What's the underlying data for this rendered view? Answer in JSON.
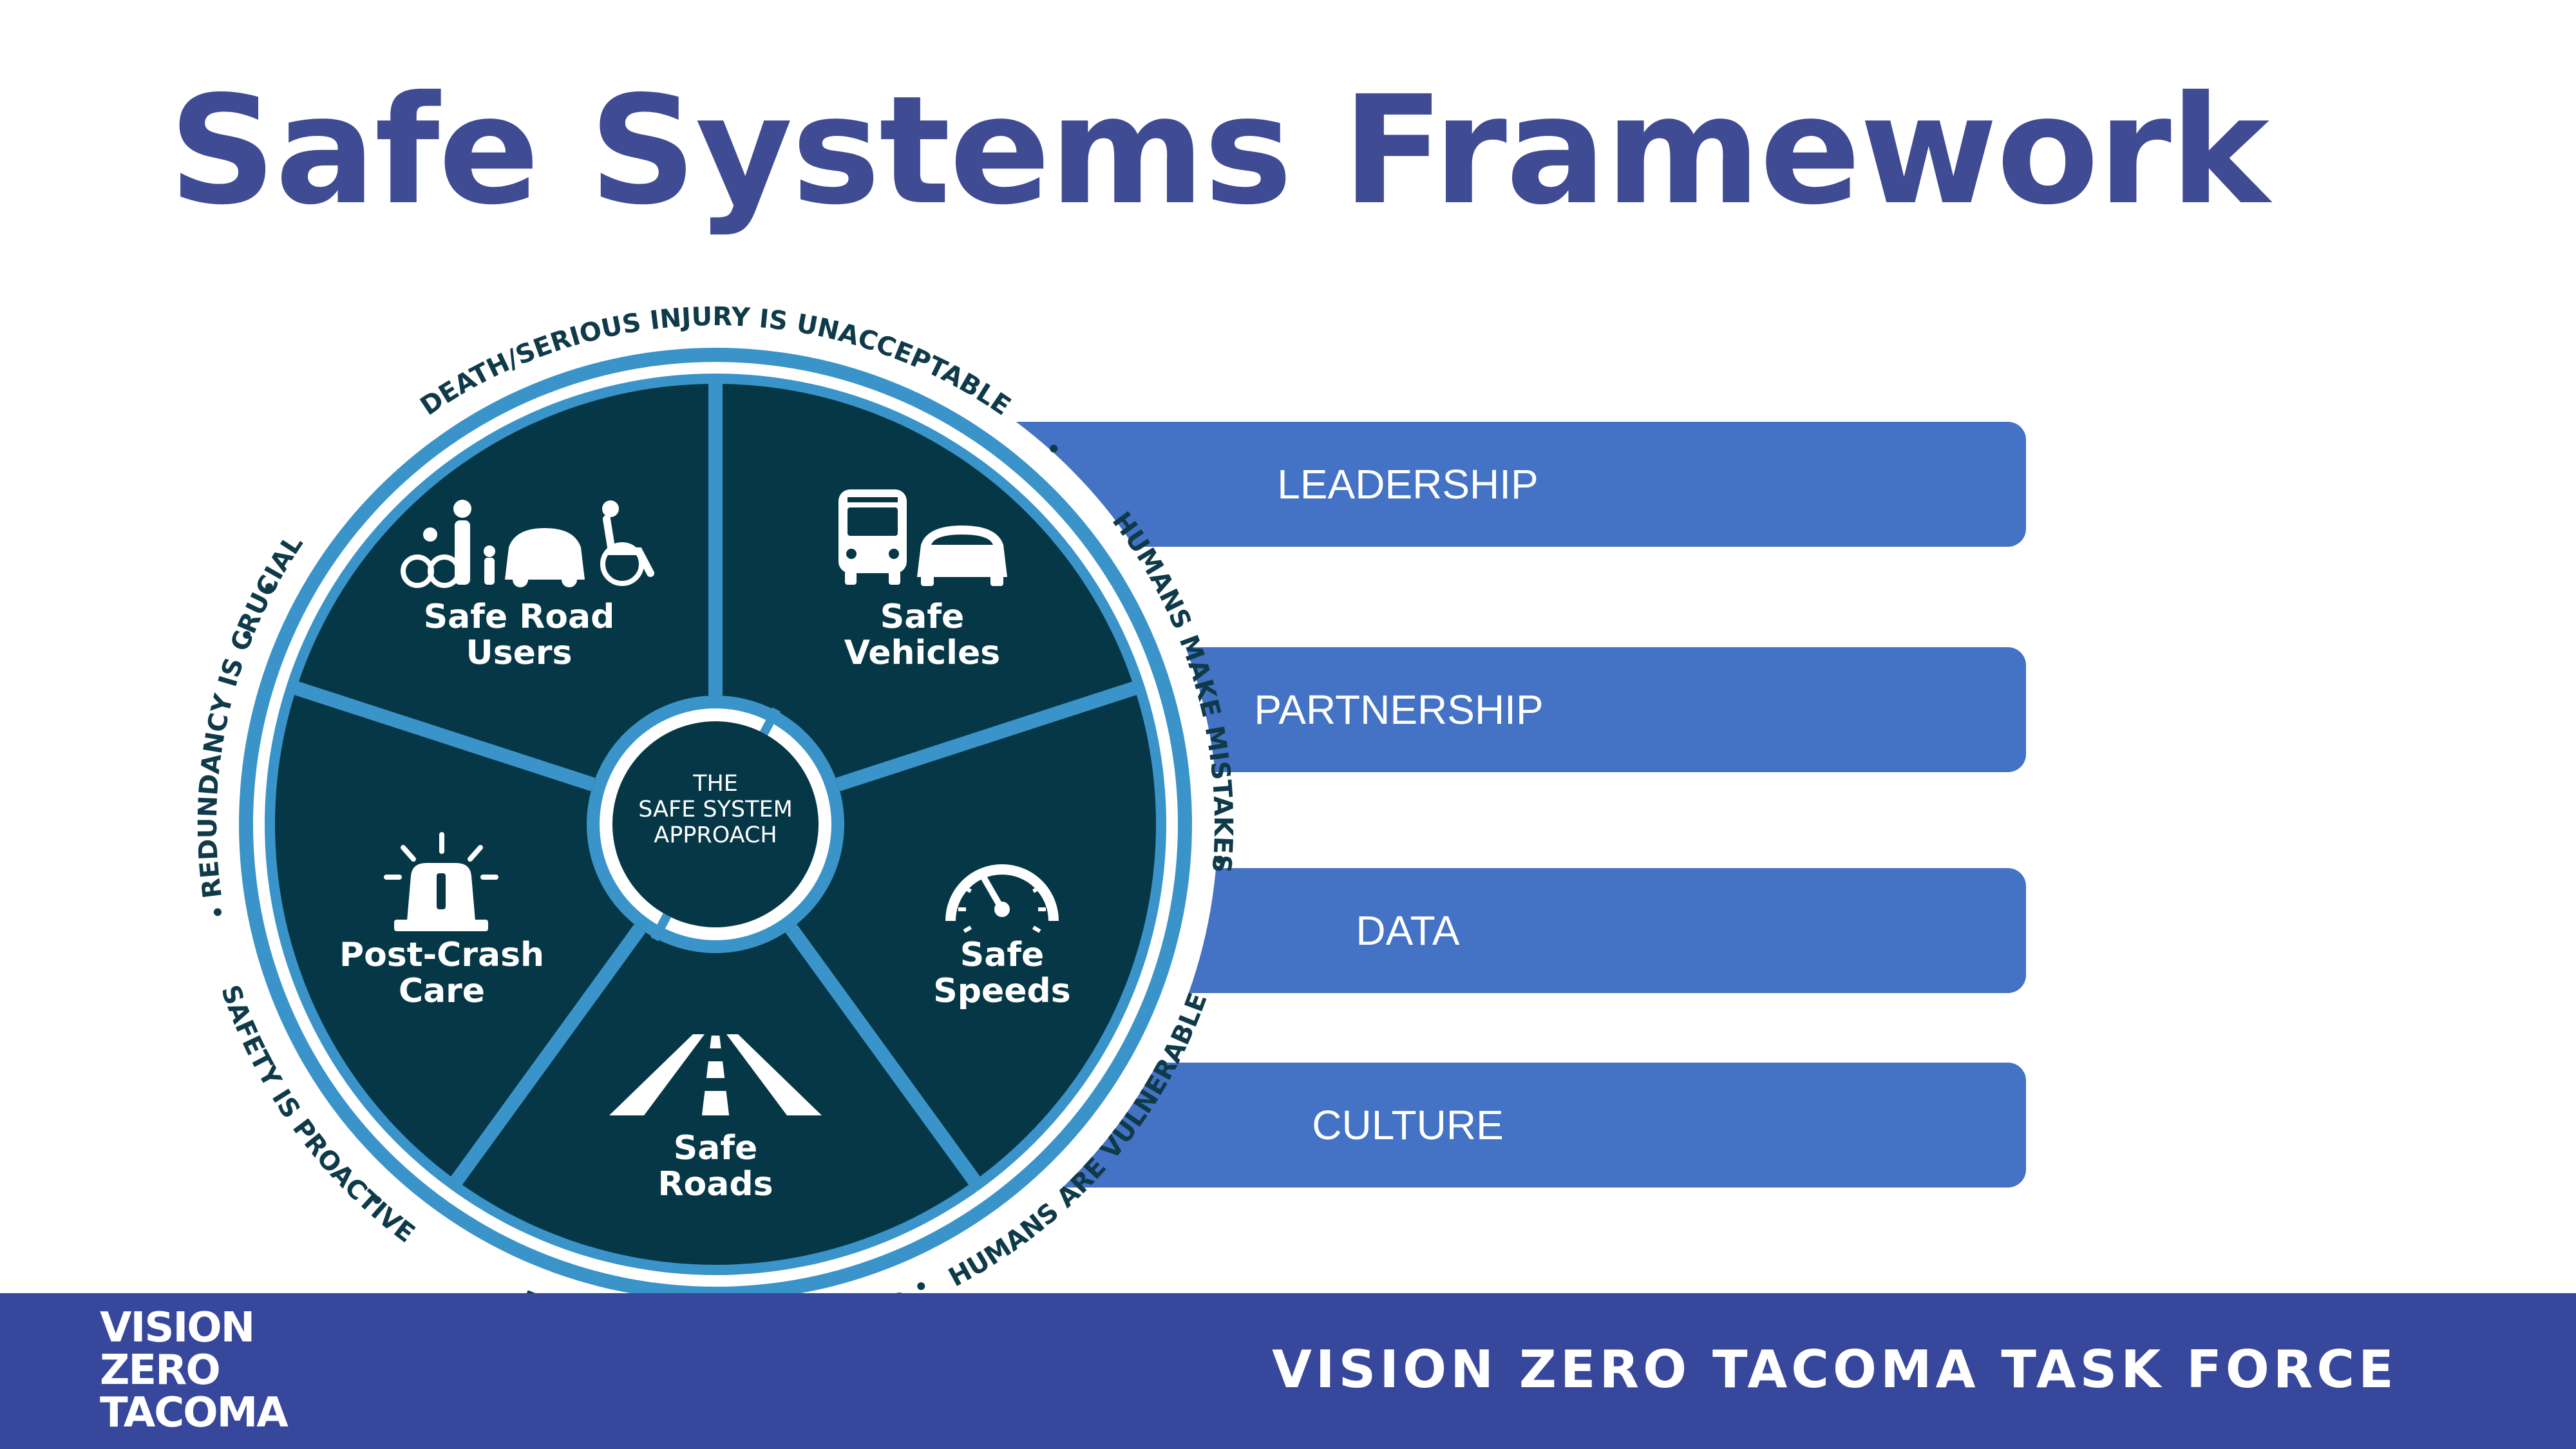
{
  "slide": {
    "title": "Safe Systems Framework"
  },
  "diagram": {
    "center": [
      "THE",
      "SAFE SYSTEM",
      "APPROACH"
    ],
    "segments": [
      {
        "lines": [
          "Safe Road",
          "Users"
        ],
        "icon": "road-users-icon"
      },
      {
        "lines": [
          "Safe",
          "Vehicles"
        ],
        "icon": "vehicles-icon"
      },
      {
        "lines": [
          "Safe",
          "Speeds"
        ],
        "icon": "speedometer-icon"
      },
      {
        "lines": [
          "Safe",
          "Roads"
        ],
        "icon": "road-icon"
      },
      {
        "lines": [
          "Post-Crash",
          "Care"
        ],
        "icon": "siren-icon"
      }
    ],
    "principles": [
      "DEATH/SERIOUS INJURY IS UNACCEPTABLE",
      "HUMANS MAKE MISTAKES",
      "HUMANS ARE VULNERABLE",
      "RESPONSIBILITY IS SHARED",
      "SAFETY IS PROACTIVE",
      "REDUNDANCY IS CRUCIAL"
    ]
  },
  "pillars": [
    "LEADERSHIP",
    "PARTNERSHIP",
    "DATA",
    "CULTURE"
  ],
  "footer": {
    "title": "VISION ZERO TACOMA TASK FORCE",
    "logo_lines": [
      "VISION",
      "ZERO",
      "TACOMA"
    ]
  },
  "colors": {
    "title": "#3f4b93",
    "footer": "#37479b",
    "bar": "#4472c4",
    "wheel_dark": "#053746",
    "wheel_ring": "#3a94c9",
    "ring_text": "#0f3a49"
  }
}
